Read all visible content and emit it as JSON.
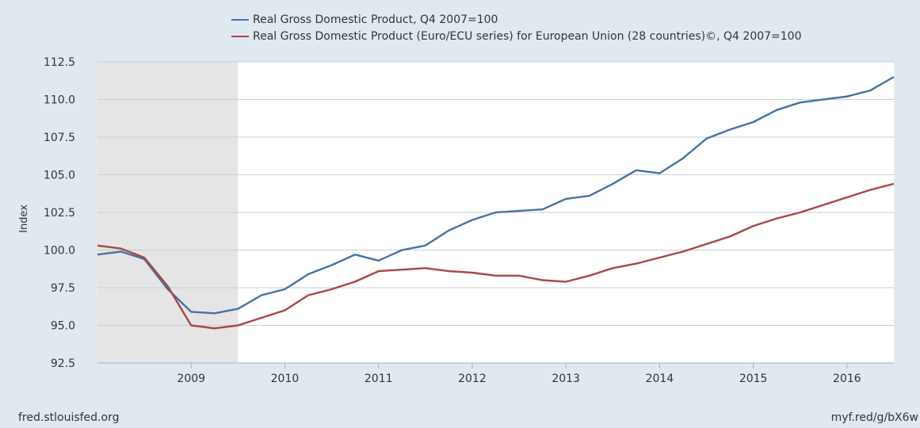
{
  "footer": {
    "source": "fred.stlouisfed.org",
    "short_url": "myf.red/g/bX6w"
  },
  "colors": {
    "background": "#e1e9f0",
    "plot_background": "#ffffff",
    "recession_shade": "#e5e5e5",
    "grid": "#c9cfd6",
    "series_us": "#4572a7",
    "series_eu": "#aa4643"
  },
  "chart_data": {
    "type": "line",
    "title": "",
    "xlabel": "",
    "ylabel": "Index",
    "ylim": [
      92.5,
      112.5
    ],
    "yticks": [
      "92.5",
      "95.0",
      "97.5",
      "100.0",
      "102.5",
      "105.0",
      "107.5",
      "110.0",
      "112.5"
    ],
    "xticks": [
      "2009",
      "2010",
      "2011",
      "2012",
      "2013",
      "2014",
      "2015",
      "2016"
    ],
    "x_quarters": [
      "2008-Q1",
      "2008-Q2",
      "2008-Q3",
      "2008-Q4",
      "2009-Q1",
      "2009-Q2",
      "2009-Q3",
      "2009-Q4",
      "2010-Q1",
      "2010-Q2",
      "2010-Q3",
      "2010-Q4",
      "2011-Q1",
      "2011-Q2",
      "2011-Q3",
      "2011-Q4",
      "2012-Q1",
      "2012-Q2",
      "2012-Q3",
      "2012-Q4",
      "2013-Q1",
      "2013-Q2",
      "2013-Q3",
      "2013-Q4",
      "2014-Q1",
      "2014-Q2",
      "2014-Q3",
      "2014-Q4",
      "2015-Q1",
      "2015-Q2",
      "2015-Q3",
      "2015-Q4",
      "2016-Q1",
      "2016-Q2",
      "2016-Q3"
    ],
    "recession": {
      "start": "2008-Q1",
      "end": "2009-Q2"
    },
    "grid": true,
    "legend_position": "top",
    "series": [
      {
        "name": "Real Gross Domestic Product, Q4 2007=100",
        "color": "#4572a7",
        "values": [
          99.7,
          99.9,
          99.4,
          97.4,
          95.9,
          95.8,
          96.1,
          97.0,
          97.4,
          98.4,
          99.0,
          99.7,
          99.3,
          100.0,
          100.3,
          101.3,
          102.0,
          102.5,
          102.6,
          102.7,
          103.4,
          103.6,
          104.4,
          105.3,
          105.1,
          106.1,
          107.4,
          108.0,
          108.5,
          109.3,
          109.8,
          110.0,
          110.2,
          110.6,
          111.5
        ]
      },
      {
        "name": "Real Gross Domestic Product (Euro/ECU series) for European Union (28 countries)©, Q4 2007=100",
        "color": "#aa4643",
        "values": [
          100.3,
          100.1,
          99.5,
          97.6,
          95.0,
          94.8,
          95.0,
          95.5,
          96.0,
          97.0,
          97.4,
          97.9,
          98.6,
          98.7,
          98.8,
          98.6,
          98.5,
          98.3,
          98.3,
          98.0,
          97.9,
          98.3,
          98.8,
          99.1,
          99.5,
          99.9,
          100.4,
          100.9,
          101.6,
          102.1,
          102.5,
          103.0,
          103.5,
          104.0,
          104.4
        ]
      }
    ]
  }
}
